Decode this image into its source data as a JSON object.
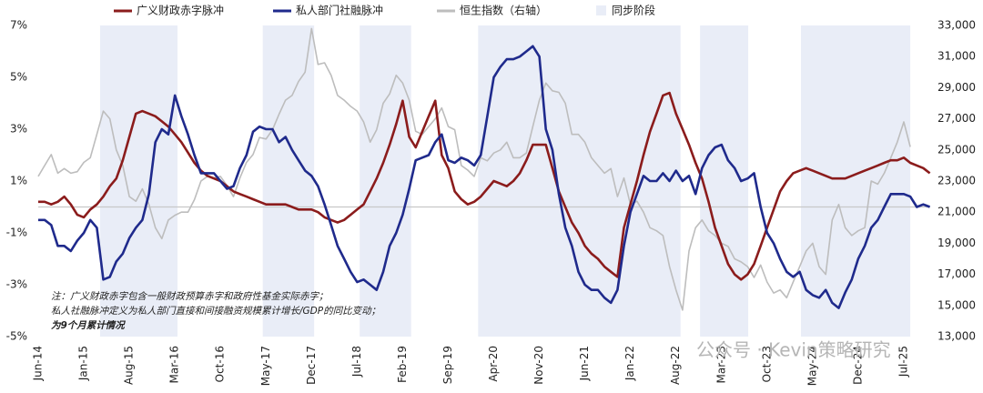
{
  "chart_data": {
    "type": "line",
    "legend_position": "top",
    "categories": [
      "Jun-14",
      null,
      null,
      null,
      null,
      null,
      null,
      "Jan-15",
      null,
      null,
      null,
      null,
      null,
      null,
      "Aug-15",
      null,
      null,
      null,
      null,
      null,
      null,
      "Mar-16",
      null,
      null,
      null,
      null,
      null,
      null,
      "Oct-16",
      null,
      null,
      null,
      null,
      null,
      null,
      "May-17",
      null,
      null,
      null,
      null,
      null,
      null,
      "Dec-17",
      null,
      null,
      null,
      null,
      null,
      null,
      "Jul-18",
      null,
      null,
      null,
      null,
      null,
      null,
      "Feb-19",
      null,
      null,
      null,
      null,
      null,
      null,
      "Sep-19",
      null,
      null,
      null,
      null,
      null,
      null,
      "Apr-20",
      null,
      null,
      null,
      null,
      null,
      null,
      "Nov-20",
      null,
      null,
      null,
      null,
      null,
      null,
      "Jun-21",
      null,
      null,
      null,
      null,
      null,
      null,
      "Jan-22",
      null,
      null,
      null,
      null,
      null,
      null,
      "Aug-22",
      null,
      null,
      null,
      null,
      null,
      null,
      "Mar-23",
      null,
      null,
      null,
      null,
      null,
      null,
      "Oct-23",
      null,
      null,
      null,
      null,
      null,
      null,
      "May-24",
      null,
      null,
      null,
      null,
      null,
      null,
      "Dec-24",
      null,
      null,
      null,
      null,
      null,
      null,
      "Jul-25",
      null,
      null,
      null,
      null
    ],
    "series": [
      {
        "name": "广义财政赤字脉冲",
        "color": "#8b1c1c",
        "axis": "y",
        "values": [
          0.2,
          0.2,
          0.1,
          0.2,
          0.4,
          0.1,
          -0.3,
          -0.4,
          -0.1,
          0.1,
          0.4,
          0.8,
          1.1,
          1.8,
          2.7,
          3.6,
          3.7,
          3.6,
          3.5,
          3.3,
          3.1,
          2.8,
          2.5,
          2.1,
          1.7,
          1.4,
          1.2,
          1.1,
          1.0,
          0.8,
          0.6,
          0.5,
          0.4,
          0.3,
          0.2,
          0.1,
          0.1,
          0.1,
          0.1,
          0.0,
          -0.1,
          -0.1,
          -0.1,
          -0.2,
          -0.4,
          -0.5,
          -0.6,
          -0.5,
          -0.3,
          -0.1,
          0.1,
          0.6,
          1.1,
          1.7,
          2.4,
          3.2,
          4.1,
          2.7,
          2.3,
          2.9,
          3.5,
          4.1,
          2.0,
          1.5,
          0.6,
          0.3,
          0.1,
          0.2,
          0.4,
          0.7,
          1.0,
          0.9,
          0.8,
          1.0,
          1.3,
          1.8,
          2.4,
          2.4,
          2.4,
          1.5,
          0.6,
          0.0,
          -0.6,
          -1.0,
          -1.5,
          -1.8,
          -2.0,
          -2.3,
          -2.5,
          -2.7,
          -0.8,
          0.1,
          1.0,
          2.0,
          2.9,
          3.6,
          4.3,
          4.4,
          3.6,
          3.0,
          2.4,
          1.7,
          1.1,
          0.2,
          -0.8,
          -1.5,
          -2.2,
          -2.6,
          -2.8,
          -2.6,
          -2.2,
          -1.5,
          -0.8,
          -0.1,
          0.6,
          1.0,
          1.3,
          1.4,
          1.5,
          1.4,
          1.3,
          1.2,
          1.1,
          1.1,
          1.1,
          1.2,
          1.3,
          1.4,
          1.5,
          1.6,
          1.7,
          1.8,
          1.8,
          1.9,
          1.7,
          1.6,
          1.5,
          1.3
        ]
      },
      {
        "name": "私人部门社融脉冲",
        "color": "#1f2a8c",
        "axis": "y",
        "values": [
          -0.5,
          -0.5,
          -0.7,
          -1.5,
          -1.5,
          -1.7,
          -1.3,
          -1.0,
          -0.5,
          -0.8,
          -2.8,
          -2.7,
          -2.1,
          -1.8,
          -1.2,
          -0.8,
          -0.5,
          0.5,
          2.5,
          3.0,
          2.8,
          4.3,
          3.5,
          2.8,
          2.0,
          1.3,
          1.3,
          1.3,
          1.0,
          0.7,
          0.8,
          1.5,
          2.0,
          2.9,
          3.1,
          3.0,
          3.0,
          2.5,
          2.7,
          2.2,
          1.8,
          1.4,
          1.2,
          0.8,
          0.1,
          -0.7,
          -1.5,
          -2.0,
          -2.5,
          -2.9,
          -2.8,
          -3.0,
          -3.2,
          -2.5,
          -1.5,
          -1.0,
          -0.3,
          0.7,
          1.8,
          1.9,
          2.0,
          2.5,
          2.8,
          1.8,
          1.7,
          1.9,
          1.8,
          1.6,
          2.0,
          3.5,
          5.0,
          5.4,
          5.7,
          5.7,
          5.8,
          6.0,
          6.2,
          5.8,
          3.0,
          2.2,
          0.5,
          -0.8,
          -1.5,
          -2.5,
          -3.0,
          -3.2,
          -3.2,
          -3.5,
          -3.7,
          -3.2,
          -1.5,
          -0.2,
          0.5,
          1.2,
          1.0,
          1.0,
          1.3,
          1.0,
          1.4,
          1.0,
          1.2,
          0.5,
          1.5,
          2.0,
          2.3,
          2.4,
          1.8,
          1.5,
          1.0,
          1.1,
          1.3,
          0.0,
          -1.0,
          -1.4,
          -2.0,
          -2.5,
          -2.7,
          -2.5,
          -3.2,
          -3.4,
          -3.5,
          -3.2,
          -3.7,
          -3.9,
          -3.3,
          -2.8,
          -2.0,
          -1.5,
          -0.8,
          -0.5,
          0.0,
          0.5,
          0.5,
          0.5,
          0.4,
          0.0,
          0.1,
          0.0
        ]
      },
      {
        "name": "恒生指数（右轴）",
        "color": "#bdbdbd",
        "axis": "y2",
        "values": [
          23300,
          24000,
          24700,
          23500,
          23800,
          23500,
          23600,
          24200,
          24500,
          26000,
          27500,
          27000,
          25000,
          24000,
          22000,
          21700,
          22500,
          21500,
          20000,
          19300,
          20500,
          20800,
          21000,
          21000,
          21800,
          23000,
          23300,
          23200,
          23300,
          22700,
          22000,
          23200,
          24200,
          24700,
          25800,
          25700,
          26300,
          27300,
          28200,
          28500,
          29400,
          30000,
          32800,
          30500,
          30600,
          29800,
          28500,
          28200,
          27800,
          27500,
          26800,
          25500,
          26300,
          28000,
          28600,
          29800,
          29300,
          28200,
          26200,
          26000,
          26500,
          27000,
          27700,
          26500,
          26300,
          24000,
          23700,
          23300,
          24500,
          24300,
          24800,
          25000,
          25500,
          24500,
          24500,
          24800,
          26500,
          28200,
          29300,
          28800,
          28700,
          28000,
          26000,
          26000,
          25500,
          24500,
          24000,
          23500,
          23800,
          22000,
          23200,
          21500,
          21700,
          21000,
          20000,
          19800,
          19500,
          17500,
          16000,
          14700,
          18500,
          20000,
          20500,
          19800,
          19500,
          19000,
          18800,
          18000,
          17800,
          17500,
          16800,
          17600,
          16500,
          15800,
          16000,
          15500,
          16500,
          17500,
          18500,
          19000,
          17500,
          17000,
          20500,
          21500,
          20000,
          19500,
          19800,
          20000,
          23000,
          22800,
          23500,
          24500,
          25500,
          26800,
          25200,
          null,
          null,
          null
        ]
      }
    ],
    "shaded_periods": {
      "name": "同步阶段",
      "color": "#e9edf7",
      "ranges": [
        [
          9.5,
          21.4
        ],
        [
          34.5,
          42.4
        ],
        [
          49.4,
          57.3
        ],
        [
          67.6,
          98.7
        ],
        [
          101.7,
          109.1
        ],
        [
          117.2,
          134
        ]
      ]
    },
    "ylim": [
      -5,
      7
    ],
    "yticks": [
      {
        "value": -5,
        "label": "-5%"
      },
      {
        "value": -3,
        "label": "-3%"
      },
      {
        "value": -1,
        "label": "-1%"
      },
      {
        "value": 1,
        "label": "1%"
      },
      {
        "value": 3,
        "label": "3%"
      },
      {
        "value": 5,
        "label": "5%"
      },
      {
        "value": 7,
        "label": "7%"
      }
    ],
    "y2lim": [
      13000,
      33000
    ],
    "y2ticks": [
      {
        "value": 13000,
        "label": "13,000"
      },
      {
        "value": 15000,
        "label": "15,000"
      },
      {
        "value": 17000,
        "label": "17,000"
      },
      {
        "value": 19000,
        "label": "19,000"
      },
      {
        "value": 21000,
        "label": "21,000"
      },
      {
        "value": 23000,
        "label": "23,000"
      },
      {
        "value": 25000,
        "label": "25,000"
      },
      {
        "value": 27000,
        "label": "27,000"
      },
      {
        "value": 29000,
        "label": "29,000"
      },
      {
        "value": 31000,
        "label": "31,000"
      },
      {
        "value": 33000,
        "label": "33,000"
      }
    ],
    "notes": [
      "注：广义财政赤字包含一般财政预算赤字和政府性基金实际赤字；",
      "私人社融脉冲定义为私人部门直接和间接融资规模累计增长/GDP的同比变动；",
      "为9个月累计情况"
    ],
    "watermark": "公众号 · Kevin策略研究"
  }
}
